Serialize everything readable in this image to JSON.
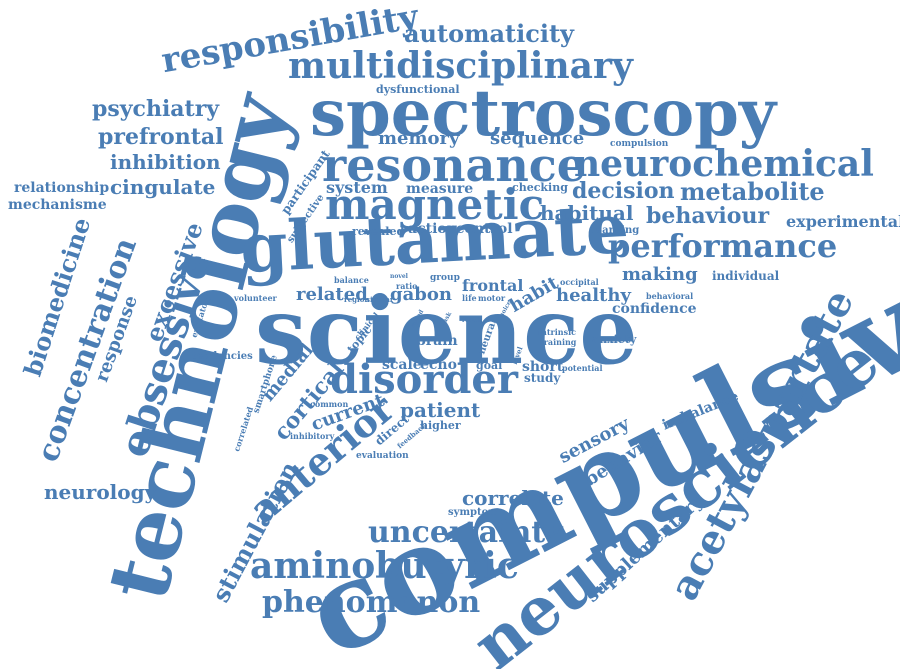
{
  "color": "#4a7db4",
  "words": [
    "compulsive",
    "science",
    "technology",
    "neuroscience",
    "spectroscopy",
    "glutamate",
    "resonance",
    "neurochemical",
    "magnetic",
    "disorder",
    "multidisciplinary",
    "responsibility",
    "automaticity",
    "performance",
    "acetylaspartate",
    "obsessive",
    "anterior",
    "concentration",
    "biomedicine",
    "uncertainty",
    "aminobutyric",
    "phenomenon",
    "metabolite",
    "psychiatry",
    "prefrontal",
    "inhibition",
    "cingulate",
    "behaviour",
    "habitual",
    "decision",
    "excessive",
    "stimulation",
    "cortical",
    "patient",
    "healthy",
    "memory",
    "sequence",
    "system",
    "measure",
    "neurology",
    "correlate",
    "supplementary",
    "sensory",
    "behavior",
    "experimental",
    "making",
    "individual",
    "confidence",
    "relationship",
    "mechanisme",
    "response",
    "related",
    "gabon",
    "frontal",
    "habit",
    "current",
    "medial",
    "brain",
    "echo",
    "scale",
    "action",
    "control",
    "checking",
    "revealed",
    "dysfunctional",
    "participant",
    "subjective",
    "learning",
    "compulsion",
    "imbalance",
    "short",
    "study",
    "goal",
    "anxiety",
    "intrinsic",
    "training",
    "symptom",
    "higher",
    "direct",
    "evaluation",
    "tendencies",
    "volunteer",
    "smartphone",
    "common",
    "inhibitory",
    "correlated",
    "excitatory",
    "topic",
    "clinical",
    "neural",
    "potential",
    "group",
    "ratio",
    "balance",
    "region",
    "similar",
    "life",
    "motor",
    "occipital",
    "behavioral",
    "level",
    "feedback",
    "result",
    "novel",
    "task",
    "speed",
    "choice"
  ]
}
